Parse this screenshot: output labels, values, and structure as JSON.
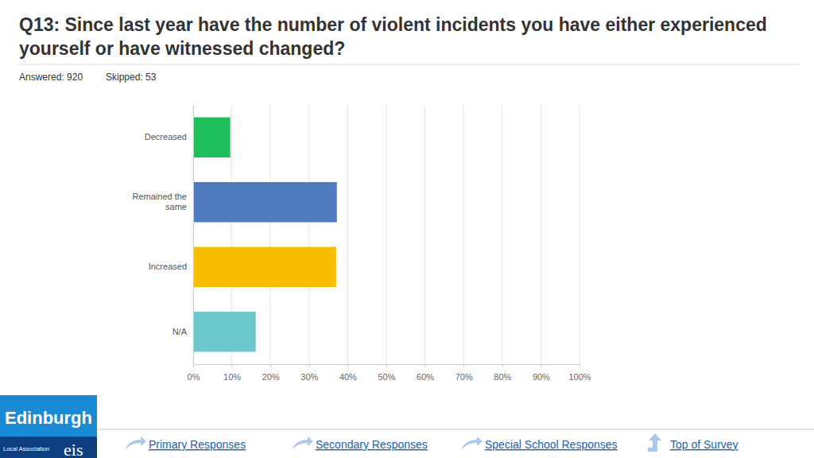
{
  "chart_data": {
    "type": "bar",
    "orientation": "horizontal",
    "title": "Q13: Since last year have the number of violent incidents you have either experienced yourself or have witnessed changed?",
    "annotations": [
      "Answered: 920",
      "Skipped: 53"
    ],
    "categories": [
      "Decreased",
      "Remained the same",
      "Increased",
      "N/A"
    ],
    "values": [
      9.6,
      37.2,
      37.0,
      16.2
    ],
    "colors": [
      "#21bf5b",
      "#507cbf",
      "#f9be00",
      "#6bc8cd"
    ],
    "xlim": [
      0,
      100
    ],
    "xticks": [
      {
        "value": 0,
        "label": "0%"
      },
      {
        "value": 10,
        "label": "10%"
      },
      {
        "value": 20,
        "label": "20%"
      },
      {
        "value": 30,
        "label": "30%"
      },
      {
        "value": 40,
        "label": "40%"
      },
      {
        "value": 50,
        "label": "50%"
      },
      {
        "value": 60,
        "label": "60%"
      },
      {
        "value": 70,
        "label": "70%"
      },
      {
        "value": 80,
        "label": "80%"
      },
      {
        "value": 90,
        "label": "90%"
      },
      {
        "value": 100,
        "label": "100%"
      }
    ],
    "grid": true
  },
  "footer": {
    "links": [
      "Primary Responses",
      "Secondary Responses",
      "Special School Responses",
      "Top of Survey"
    ]
  },
  "logo": {
    "title": "Edinburgh",
    "subtitle": "Local Association",
    "brand": "eis"
  }
}
